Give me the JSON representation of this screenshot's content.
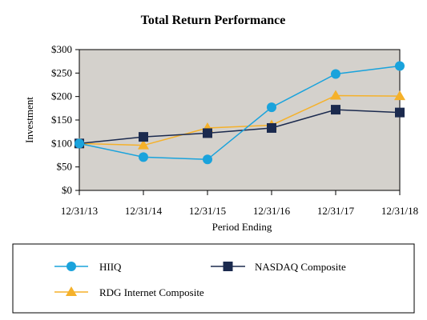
{
  "chart_data": {
    "type": "line",
    "title": "Total Return Performance",
    "xlabel": "Period Ending",
    "ylabel": "Investment",
    "categories": [
      "12/31/13",
      "12/31/14",
      "12/31/15",
      "12/31/16",
      "12/31/17",
      "12/31/18"
    ],
    "ylim": [
      0,
      300
    ],
    "yticks": [
      "$0",
      "$50",
      "$100",
      "$150",
      "$200",
      "$250",
      "$300"
    ],
    "ytick_values": [
      0,
      50,
      100,
      150,
      200,
      250,
      300
    ],
    "grid": false,
    "plot_background": "#d4d1cc",
    "legend_position": "bottom",
    "series": [
      {
        "name": "HIIQ",
        "marker": "circle",
        "color": "#1aa3dc",
        "values": [
          100,
          71,
          66,
          177,
          248,
          265
        ]
      },
      {
        "name": "NASDAQ Composite",
        "marker": "square",
        "color": "#1b2a4e",
        "values": [
          100,
          114,
          122,
          133,
          172,
          166
        ]
      },
      {
        "name": "RDG Internet Composite",
        "marker": "triangle",
        "color": "#f5b12a",
        "values": [
          100,
          96,
          133,
          139,
          202,
          201
        ]
      }
    ]
  }
}
